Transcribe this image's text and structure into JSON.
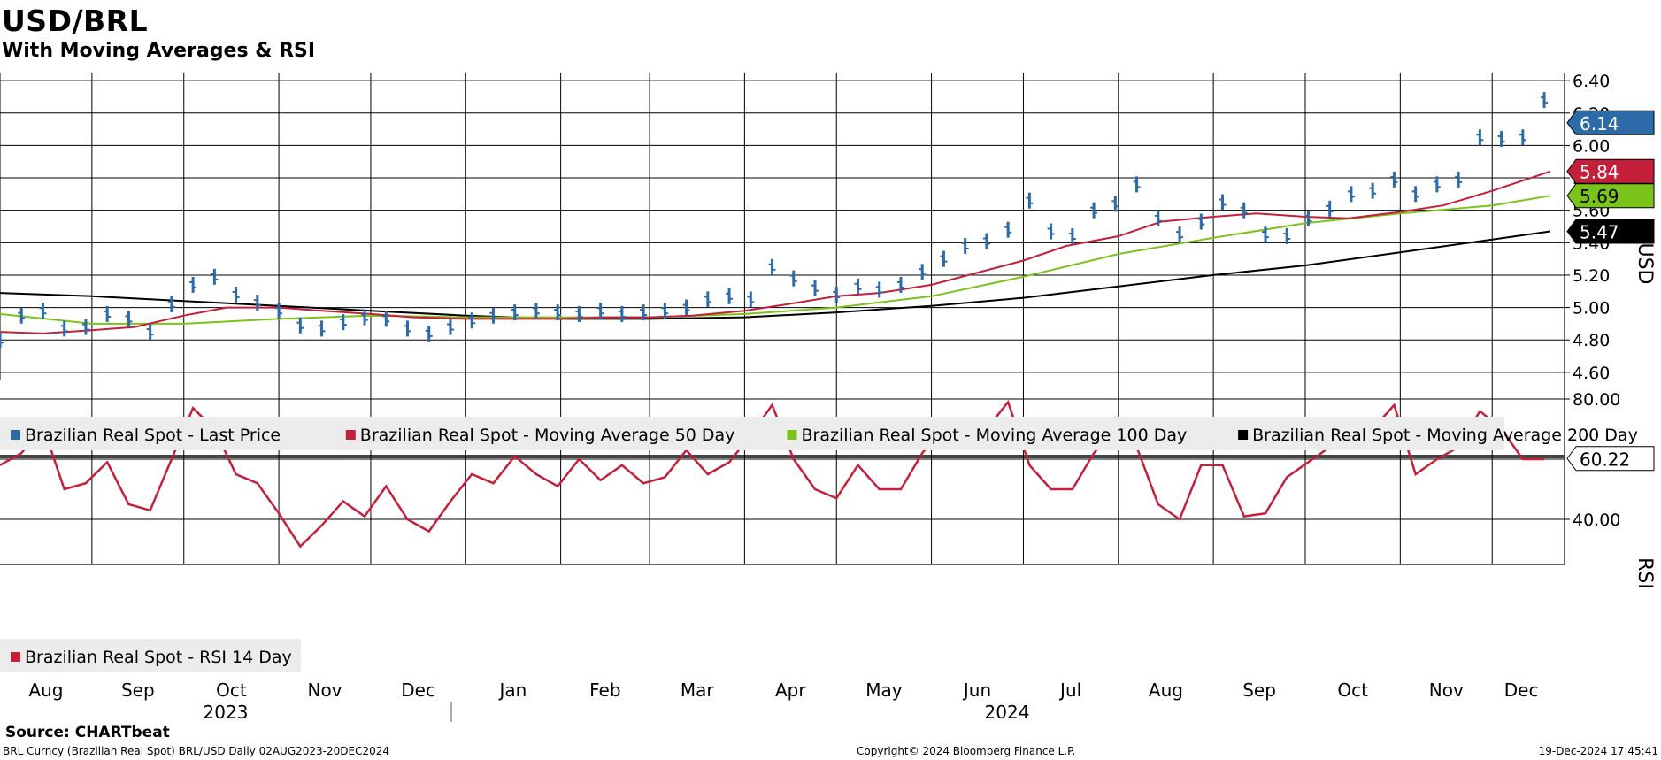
{
  "title": "USD/BRL",
  "subtitle": "With Moving Averages & RSI",
  "chart_data": [
    {
      "type": "line",
      "title": "USD/BRL",
      "ylabel": "USD",
      "ylim": [
        4.55,
        6.45
      ],
      "yticks": [
        "6.40",
        "6.20",
        "6.00",
        "5.80",
        "5.60",
        "5.40",
        "5.20",
        "5.00",
        "4.80",
        "4.60"
      ],
      "grid": true,
      "legend_placement": "bottom-left",
      "x_start": "2023-08-02",
      "x_end": "2024-12-20",
      "x_tick_dates": [
        "2023-08-01",
        "2023-09-01",
        "2023-10-01",
        "2023-11-01",
        "2023-12-01",
        "2024-01-01",
        "2024-02-01",
        "2024-03-01",
        "2024-04-01",
        "2024-05-01",
        "2024-06-01",
        "2024-07-01",
        "2024-08-01",
        "2024-09-01",
        "2024-10-01",
        "2024-11-01",
        "2024-12-01"
      ],
      "series": [
        {
          "name": "Brazilian Real Spot - Last Price",
          "color": "#2c6aa8",
          "style": "bar",
          "last_label": "6.14",
          "dates": [
            "2023-08-02",
            "2023-08-09",
            "2023-08-16",
            "2023-08-23",
            "2023-08-30",
            "2023-09-06",
            "2023-09-13",
            "2023-09-20",
            "2023-09-27",
            "2023-10-04",
            "2023-10-11",
            "2023-10-18",
            "2023-10-25",
            "2023-11-01",
            "2023-11-08",
            "2023-11-15",
            "2023-11-22",
            "2023-11-29",
            "2023-12-06",
            "2023-12-13",
            "2023-12-20",
            "2023-12-27",
            "2024-01-03",
            "2024-01-10",
            "2024-01-17",
            "2024-01-24",
            "2024-01-31",
            "2024-02-07",
            "2024-02-14",
            "2024-02-21",
            "2024-02-28",
            "2024-03-06",
            "2024-03-13",
            "2024-03-20",
            "2024-03-27",
            "2024-04-03",
            "2024-04-10",
            "2024-04-17",
            "2024-04-24",
            "2024-05-01",
            "2024-05-08",
            "2024-05-15",
            "2024-05-22",
            "2024-05-29",
            "2024-06-05",
            "2024-06-12",
            "2024-06-19",
            "2024-06-26",
            "2024-07-03",
            "2024-07-10",
            "2024-07-17",
            "2024-07-24",
            "2024-07-31",
            "2024-08-07",
            "2024-08-14",
            "2024-08-21",
            "2024-08-28",
            "2024-09-04",
            "2024-09-11",
            "2024-09-18",
            "2024-09-25",
            "2024-10-02",
            "2024-10-09",
            "2024-10-16",
            "2024-10-23",
            "2024-10-30",
            "2024-11-06",
            "2024-11-13",
            "2024-11-20",
            "2024-11-27",
            "2024-12-04",
            "2024-12-11",
            "2024-12-18"
          ],
          "values": [
            4.8,
            4.95,
            4.98,
            4.87,
            4.88,
            4.96,
            4.93,
            4.85,
            5.02,
            5.14,
            5.19,
            5.08,
            5.03,
            4.98,
            4.89,
            4.87,
            4.91,
            4.94,
            4.93,
            4.87,
            4.84,
            4.88,
            4.92,
            4.95,
            4.97,
            4.98,
            4.97,
            4.96,
            4.98,
            4.96,
            4.97,
            4.98,
            5.0,
            5.05,
            5.07,
            5.05,
            5.25,
            5.18,
            5.12,
            5.08,
            5.13,
            5.11,
            5.14,
            5.22,
            5.3,
            5.38,
            5.41,
            5.48,
            5.66,
            5.47,
            5.44,
            5.6,
            5.64,
            5.76,
            5.55,
            5.45,
            5.53,
            5.65,
            5.6,
            5.45,
            5.44,
            5.55,
            5.61,
            5.7,
            5.72,
            5.79,
            5.7,
            5.76,
            5.79,
            6.05,
            6.04,
            6.05,
            6.28
          ]
        },
        {
          "name": "Brazilian Real Spot - Moving Average 50 Day",
          "color": "#c4203a",
          "last_label": "5.84",
          "dates": [
            "2023-08-02",
            "2023-08-16",
            "2023-09-01",
            "2023-09-15",
            "2023-10-01",
            "2023-10-15",
            "2023-11-01",
            "2023-11-15",
            "2023-12-01",
            "2023-12-15",
            "2024-01-01",
            "2024-01-15",
            "2024-02-01",
            "2024-02-15",
            "2024-03-01",
            "2024-03-15",
            "2024-04-01",
            "2024-04-15",
            "2024-05-01",
            "2024-05-15",
            "2024-06-01",
            "2024-06-15",
            "2024-07-01",
            "2024-07-15",
            "2024-08-01",
            "2024-08-15",
            "2024-09-01",
            "2024-09-15",
            "2024-10-01",
            "2024-10-15",
            "2024-11-01",
            "2024-11-15",
            "2024-12-01",
            "2024-12-20"
          ],
          "values": [
            4.85,
            4.84,
            4.86,
            4.88,
            4.95,
            5.0,
            5.0,
            4.98,
            4.96,
            4.94,
            4.93,
            4.93,
            4.93,
            4.94,
            4.94,
            4.95,
            4.98,
            5.02,
            5.07,
            5.09,
            5.14,
            5.21,
            5.29,
            5.38,
            5.44,
            5.53,
            5.56,
            5.58,
            5.56,
            5.55,
            5.59,
            5.63,
            5.72,
            5.84
          ]
        },
        {
          "name": "Brazilian Real Spot - Moving Average 100 Day",
          "color": "#7ac31a",
          "last_label": "5.69",
          "dates": [
            "2023-08-02",
            "2023-09-01",
            "2023-10-01",
            "2023-11-01",
            "2023-12-01",
            "2024-01-01",
            "2024-02-01",
            "2024-03-01",
            "2024-04-01",
            "2024-05-01",
            "2024-06-01",
            "2024-07-01",
            "2024-08-01",
            "2024-09-01",
            "2024-10-01",
            "2024-11-01",
            "2024-12-01",
            "2024-12-20"
          ],
          "values": [
            4.96,
            4.9,
            4.9,
            4.93,
            4.95,
            4.94,
            4.94,
            4.94,
            4.96,
            5.0,
            5.07,
            5.19,
            5.33,
            5.43,
            5.52,
            5.58,
            5.63,
            5.69
          ]
        },
        {
          "name": "Brazilian Real Spot - Moving Average 200 Day",
          "color": "#000000",
          "last_label": "5.47",
          "dates": [
            "2023-08-02",
            "2023-09-01",
            "2023-10-01",
            "2023-11-01",
            "2023-12-01",
            "2024-01-01",
            "2024-02-01",
            "2024-03-01",
            "2024-04-01",
            "2024-05-01",
            "2024-06-01",
            "2024-07-01",
            "2024-08-01",
            "2024-09-01",
            "2024-10-01",
            "2024-11-01",
            "2024-12-01",
            "2024-12-20"
          ],
          "values": [
            5.09,
            5.07,
            5.04,
            5.01,
            4.98,
            4.95,
            4.93,
            4.93,
            4.94,
            4.97,
            5.01,
            5.06,
            5.13,
            5.2,
            5.26,
            5.34,
            5.42,
            5.47
          ]
        }
      ]
    },
    {
      "type": "line",
      "ylabel": "RSI",
      "ylim": [
        25,
        85
      ],
      "yticks": [
        "80.00",
        "40.00"
      ],
      "grid": true,
      "legend_placement": "bottom-left",
      "series": [
        {
          "name": "Brazilian Real Spot - RSI 14 Day",
          "color": "#c4203a",
          "last_label": "60.22",
          "dates": [
            "2023-08-02",
            "2023-08-09",
            "2023-08-16",
            "2023-08-23",
            "2023-08-30",
            "2023-09-06",
            "2023-09-13",
            "2023-09-20",
            "2023-09-27",
            "2023-10-04",
            "2023-10-11",
            "2023-10-18",
            "2023-10-25",
            "2023-11-01",
            "2023-11-08",
            "2023-11-15",
            "2023-11-22",
            "2023-11-29",
            "2023-12-06",
            "2023-12-13",
            "2023-12-20",
            "2023-12-27",
            "2024-01-03",
            "2024-01-10",
            "2024-01-17",
            "2024-01-24",
            "2024-01-31",
            "2024-02-07",
            "2024-02-14",
            "2024-02-21",
            "2024-02-28",
            "2024-03-06",
            "2024-03-13",
            "2024-03-20",
            "2024-03-27",
            "2024-04-03",
            "2024-04-10",
            "2024-04-17",
            "2024-04-24",
            "2024-05-01",
            "2024-05-08",
            "2024-05-15",
            "2024-05-22",
            "2024-05-29",
            "2024-06-05",
            "2024-06-12",
            "2024-06-19",
            "2024-06-26",
            "2024-07-03",
            "2024-07-10",
            "2024-07-17",
            "2024-07-24",
            "2024-07-31",
            "2024-08-07",
            "2024-08-14",
            "2024-08-21",
            "2024-08-28",
            "2024-09-04",
            "2024-09-11",
            "2024-09-18",
            "2024-09-25",
            "2024-10-02",
            "2024-10-09",
            "2024-10-16",
            "2024-10-23",
            "2024-10-30",
            "2024-11-06",
            "2024-11-13",
            "2024-11-20",
            "2024-11-27",
            "2024-12-04",
            "2024-12-11",
            "2024-12-18"
          ],
          "values": [
            58,
            62,
            71,
            50,
            52,
            59,
            45,
            43,
            60,
            77,
            70,
            55,
            52,
            42,
            31,
            38,
            46,
            41,
            51,
            40,
            36,
            46,
            55,
            52,
            61,
            55,
            51,
            60,
            53,
            58,
            52,
            54,
            63,
            55,
            59,
            68,
            78,
            60,
            50,
            47,
            58,
            50,
            50,
            62,
            71,
            73,
            70,
            79,
            58,
            50,
            50,
            62,
            70,
            64,
            45,
            40,
            58,
            58,
            41,
            42,
            54,
            59,
            64,
            69,
            70,
            78,
            55,
            60,
            64,
            76,
            70,
            60,
            60
          ]
        }
      ]
    }
  ],
  "x_axis": {
    "months": [
      "Aug",
      "Sep",
      "Oct",
      "Nov",
      "Dec",
      "Jan",
      "Feb",
      "Mar",
      "Apr",
      "May",
      "Jun",
      "Jul",
      "Aug",
      "Sep",
      "Oct",
      "Nov",
      "Dec"
    ],
    "years": [
      "2023",
      "2024"
    ]
  },
  "footer": {
    "source": "Source: CHARTbeat",
    "ticker": "BRL Curncy (Brazilian Real Spot) BRL/USD  Daily 02AUG2023-20DEC2024",
    "copyright": "Copyright© 2024 Bloomberg Finance L.P.",
    "timestamp": "19-Dec-2024 17:45:41"
  }
}
